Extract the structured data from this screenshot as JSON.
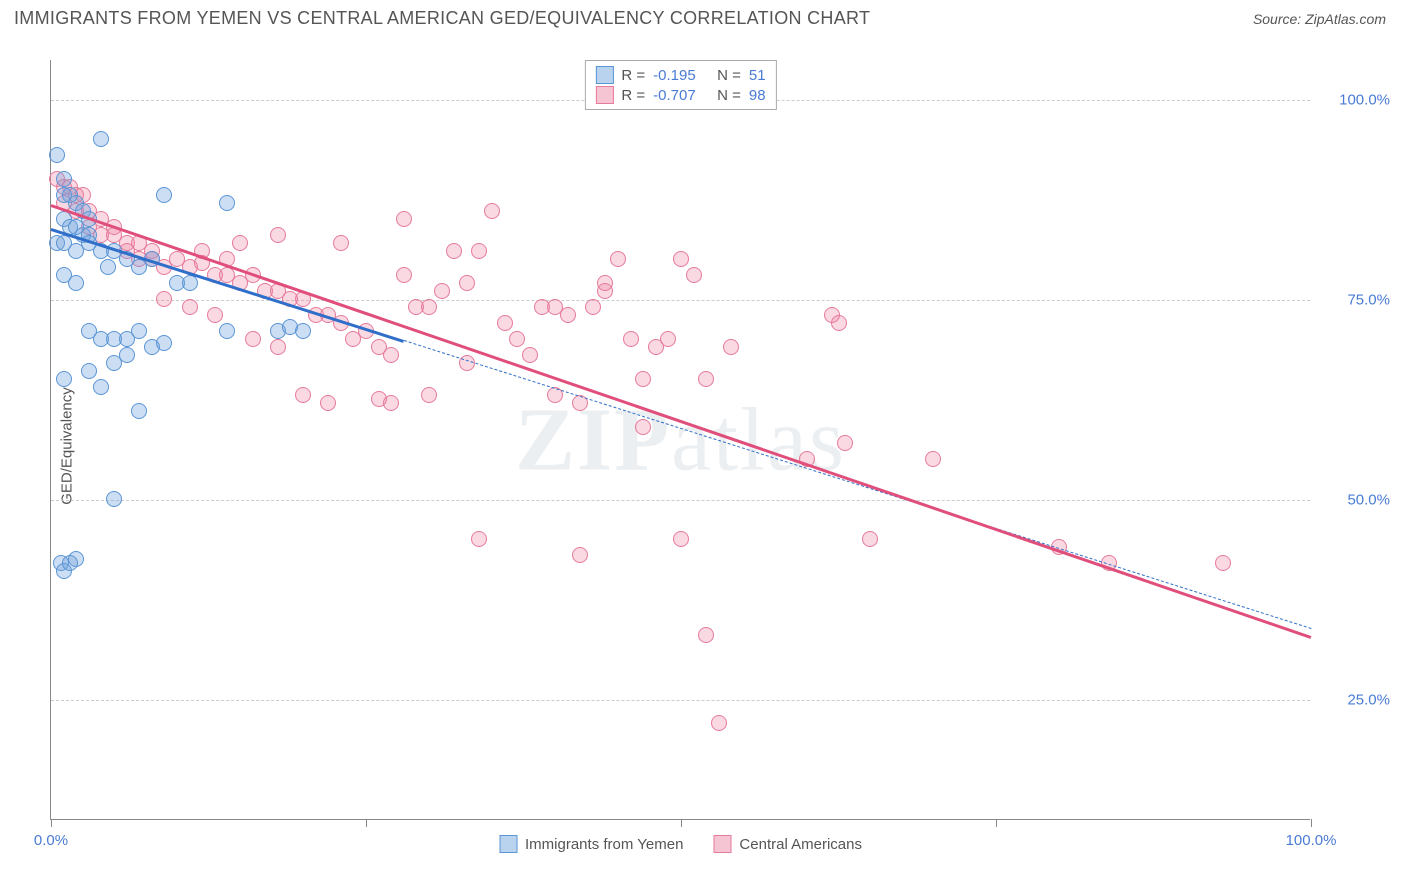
{
  "header": {
    "title": "IMMIGRANTS FROM YEMEN VS CENTRAL AMERICAN GED/EQUIVALENCY CORRELATION CHART",
    "source": "Source: ZipAtlas.com"
  },
  "chart": {
    "type": "scatter",
    "ylabel": "GED/Equivalency",
    "xlim": [
      0,
      100
    ],
    "ylim": [
      10,
      105
    ],
    "xtick_positions_pct": [
      0,
      25,
      50,
      75,
      100
    ],
    "xtick_labels": [
      "0.0%",
      "",
      "",
      "",
      "100.0%"
    ],
    "ytick_positions": [
      25,
      50,
      75,
      100
    ],
    "ytick_labels": [
      "25.0%",
      "50.0%",
      "75.0%",
      "100.0%"
    ],
    "grid_color": "#cccccc",
    "background_color": "#ffffff",
    "axis_color": "#888888",
    "tick_label_color": "#4a7bd4",
    "label_color": "#555555",
    "label_fontsize": 15,
    "marker_radius": 8,
    "marker_opacity": 0.55,
    "marker_stroke_width": 1,
    "series": {
      "yemen": {
        "label": "Immigrants from Yemen",
        "color_fill": "rgba(110,160,220,0.35)",
        "color_stroke": "#5a95d6",
        "swatch_fill": "#b9d3ee",
        "swatch_stroke": "#5a95d6",
        "R": "-0.195",
        "N": "51",
        "regression": {
          "x1_pct": 0,
          "y1": 84,
          "x2_pct": 28,
          "y2": 70,
          "color": "#2f6fc9",
          "width": 2.5,
          "dashed_ext": {
            "x2_pct": 100,
            "y2": 34
          }
        },
        "points": [
          [
            0.5,
            93
          ],
          [
            1,
            90
          ],
          [
            1,
            88
          ],
          [
            1.5,
            88
          ],
          [
            2,
            87
          ],
          [
            2.5,
            86
          ],
          [
            3,
            85
          ],
          [
            1,
            85
          ],
          [
            1.5,
            84
          ],
          [
            2,
            84
          ],
          [
            2.5,
            83
          ],
          [
            3,
            83
          ],
          [
            0.5,
            82
          ],
          [
            1,
            82
          ],
          [
            3,
            82
          ],
          [
            2,
            81
          ],
          [
            4,
            81
          ],
          [
            5,
            81
          ],
          [
            4.5,
            79
          ],
          [
            6,
            80
          ],
          [
            7,
            79
          ],
          [
            8,
            80
          ],
          [
            9,
            88
          ],
          [
            14,
            87
          ],
          [
            4,
            95
          ],
          [
            1,
            78
          ],
          [
            2,
            77
          ],
          [
            3,
            71
          ],
          [
            4,
            70
          ],
          [
            5,
            70
          ],
          [
            6,
            70
          ],
          [
            7,
            71
          ],
          [
            8,
            69
          ],
          [
            9,
            69.5
          ],
          [
            10,
            77
          ],
          [
            11,
            77
          ],
          [
            14,
            71
          ],
          [
            18,
            71
          ],
          [
            19,
            71.5
          ],
          [
            20,
            71
          ],
          [
            3,
            66
          ],
          [
            5,
            67
          ],
          [
            6,
            68
          ],
          [
            4,
            64
          ],
          [
            7,
            61
          ],
          [
            1,
            65
          ],
          [
            0.8,
            42
          ],
          [
            1,
            41
          ],
          [
            2,
            42.5
          ],
          [
            1.5,
            42
          ],
          [
            5,
            50
          ]
        ]
      },
      "central": {
        "label": "Central Americans",
        "color_fill": "rgba(240,130,160,0.30)",
        "color_stroke": "#e67a9a",
        "swatch_fill": "#f6c5d4",
        "swatch_stroke": "#e67a9a",
        "R": "-0.707",
        "N": "98",
        "regression": {
          "x1_pct": 0,
          "y1": 87,
          "x2_pct": 100,
          "y2": 33,
          "color": "#e04f7c",
          "width": 2.5
        },
        "points": [
          [
            0.5,
            90
          ],
          [
            1,
            89
          ],
          [
            1.5,
            89
          ],
          [
            2,
            88
          ],
          [
            2.5,
            88
          ],
          [
            1,
            87
          ],
          [
            2,
            86
          ],
          [
            3,
            86
          ],
          [
            4,
            85
          ],
          [
            5,
            84
          ],
          [
            3,
            84
          ],
          [
            4,
            83
          ],
          [
            5,
            83
          ],
          [
            6,
            82
          ],
          [
            7,
            82
          ],
          [
            8,
            81
          ],
          [
            6,
            81
          ],
          [
            7,
            80
          ],
          [
            8,
            80
          ],
          [
            9,
            79
          ],
          [
            10,
            80
          ],
          [
            11,
            79
          ],
          [
            12,
            79.5
          ],
          [
            13,
            78
          ],
          [
            14,
            78
          ],
          [
            15,
            77
          ],
          [
            12,
            81
          ],
          [
            14,
            80
          ],
          [
            16,
            78
          ],
          [
            17,
            76
          ],
          [
            18,
            76
          ],
          [
            19,
            75
          ],
          [
            20,
            75
          ],
          [
            21,
            73
          ],
          [
            22,
            73
          ],
          [
            23,
            72
          ],
          [
            24,
            70
          ],
          [
            25,
            71
          ],
          [
            26,
            69
          ],
          [
            27,
            68
          ],
          [
            28,
            78
          ],
          [
            29,
            74
          ],
          [
            30,
            74
          ],
          [
            31,
            76
          ],
          [
            32,
            81
          ],
          [
            33,
            67
          ],
          [
            34,
            81
          ],
          [
            35,
            86
          ],
          [
            36,
            72
          ],
          [
            37,
            70
          ],
          [
            38,
            68
          ],
          [
            39,
            74
          ],
          [
            40,
            74
          ],
          [
            41,
            73
          ],
          [
            42,
            62
          ],
          [
            43,
            74
          ],
          [
            44,
            76
          ],
          [
            45,
            80
          ],
          [
            46,
            70
          ],
          [
            47,
            65
          ],
          [
            48,
            69
          ],
          [
            49,
            70
          ],
          [
            50,
            80
          ],
          [
            51,
            78
          ],
          [
            52,
            65
          ],
          [
            26,
            62.5
          ],
          [
            27,
            62
          ],
          [
            20,
            63
          ],
          [
            22,
            62
          ],
          [
            18,
            69
          ],
          [
            16,
            70
          ],
          [
            13,
            73
          ],
          [
            11,
            74
          ],
          [
            9,
            75
          ],
          [
            34,
            45
          ],
          [
            42,
            43
          ],
          [
            40,
            63
          ],
          [
            47,
            59
          ],
          [
            50,
            45
          ],
          [
            53,
            22
          ],
          [
            54,
            69
          ],
          [
            60,
            55
          ],
          [
            62,
            73
          ],
          [
            62.5,
            72
          ],
          [
            63,
            57
          ],
          [
            65,
            45
          ],
          [
            52,
            33
          ],
          [
            70,
            55
          ],
          [
            80,
            44
          ],
          [
            84,
            42
          ],
          [
            93,
            42
          ],
          [
            15,
            82
          ],
          [
            18,
            83
          ],
          [
            28,
            85
          ],
          [
            23,
            82
          ],
          [
            30,
            63
          ],
          [
            33,
            77
          ],
          [
            44,
            77
          ]
        ]
      }
    }
  },
  "watermark": {
    "text_bold": "ZIP",
    "text_thin": "atlas"
  }
}
